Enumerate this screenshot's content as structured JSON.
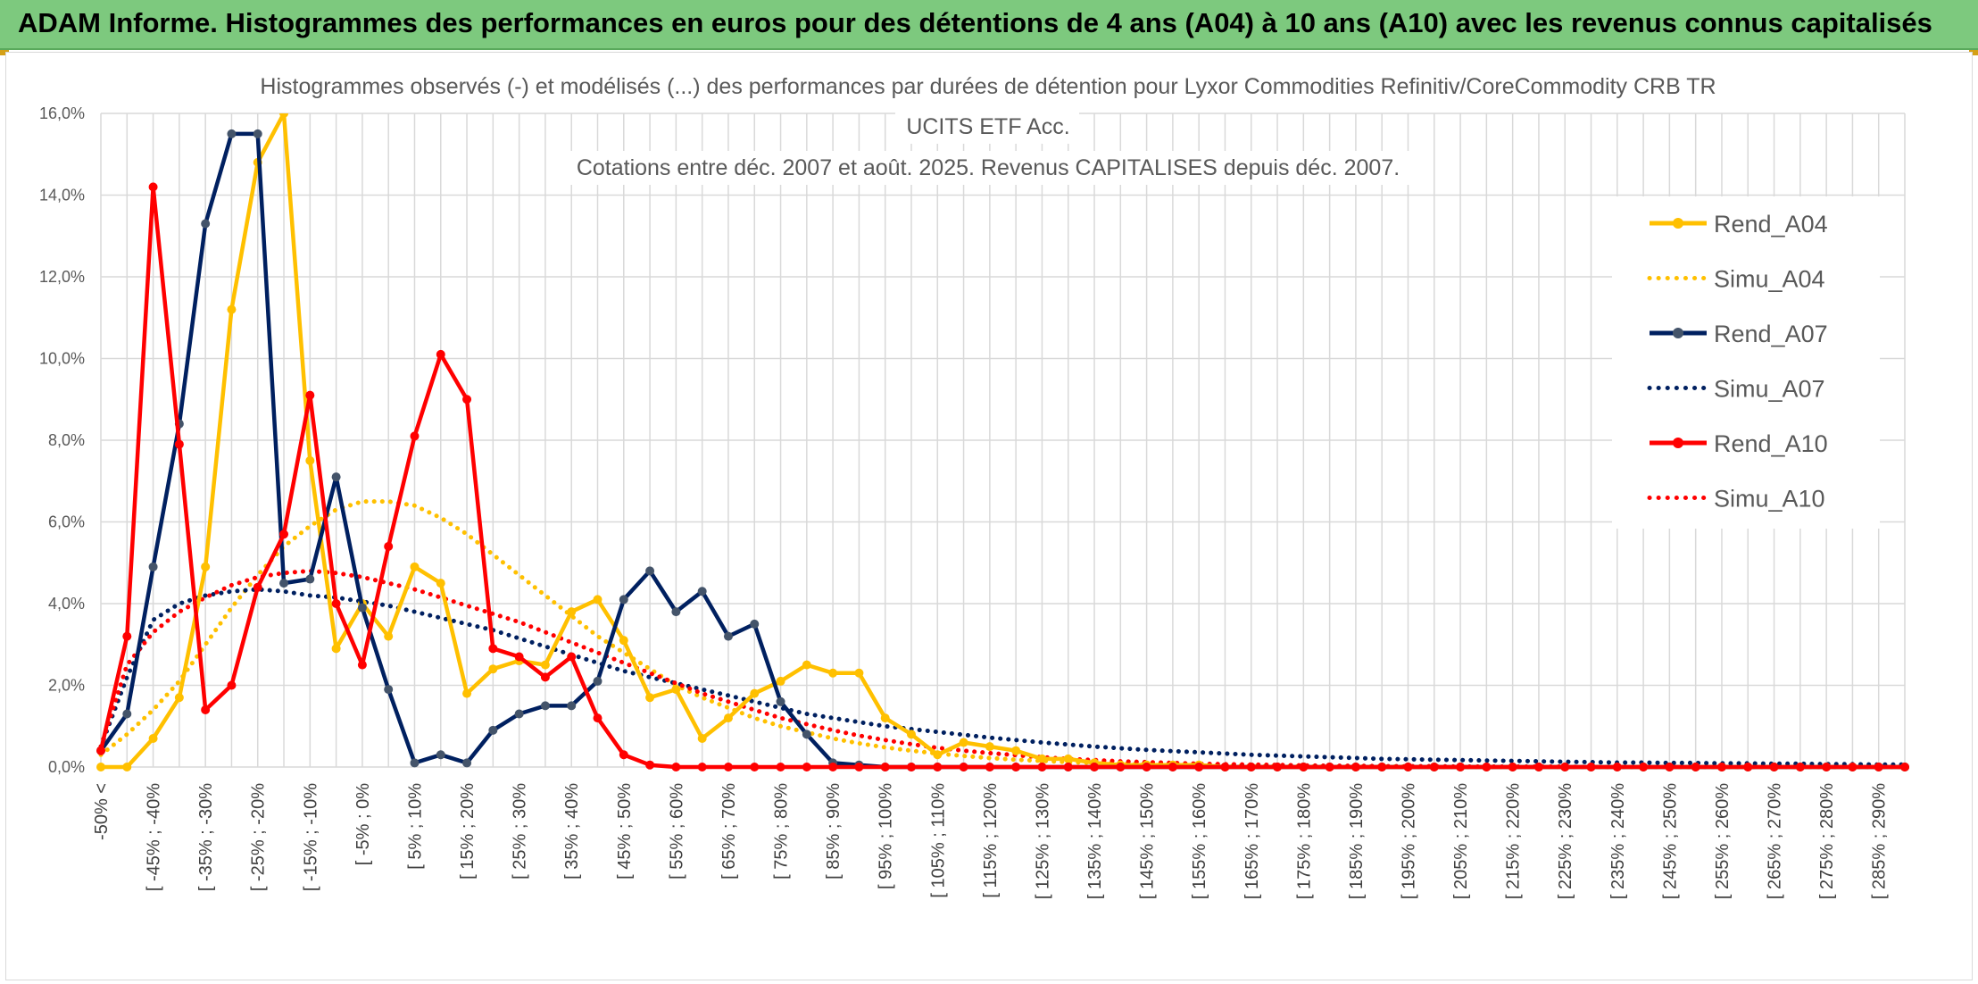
{
  "banner": {
    "title": "ADAM Informe. Histogrammes des performances en euros pour des détentions de 4 ans (A04) à 10 ans (A10) avec les revenus connus capitalisés"
  },
  "colors": {
    "banner_bg": "#7dc97e",
    "A04": "#ffc000",
    "A07": "#002060",
    "A07_marker": "#44546a",
    "A10": "#ff0000",
    "grid": "#d9d9d9"
  },
  "chart_data": {
    "type": "line",
    "title_lines": [
      "Histogrammes observés (-) et modélisés (...) des performances par durées de détention pour Lyxor Commodities Refinitiv/CoreCommodity CRB TR",
      "UCITS ETF Acc.",
      "Cotations entre déc. 2007 et août. 2025. Revenus CAPITALISES depuis déc. 2007."
    ],
    "ylim": [
      0,
      16
    ],
    "yticks": [
      "0,0%",
      "2,0%",
      "4,0%",
      "6,0%",
      "8,0%",
      "10,0%",
      "12,0%",
      "14,0%",
      "16,0%"
    ],
    "grid": true,
    "legend_position": "right",
    "x_tick_labels": [
      "-50% <",
      "[ -45% ; -40%",
      "[ -35% ; -30%",
      "[ -25% ; -20%",
      "[ -15% ; -10%",
      "[ -5% ; 0%",
      "[ 5% ; 10%",
      "[ 15% ; 20%",
      "[ 25% ; 30%",
      "[ 35% ; 40%",
      "[ 45% ; 50%",
      "[ 55% ; 60%",
      "[ 65% ; 70%",
      "[ 75% ; 80%",
      "[ 85% ; 90%",
      "[ 95% ; 100%",
      "[ 105% ; 110%",
      "[ 115% ; 120%",
      "[ 125% ; 130%",
      "[ 135% ; 140%",
      "[ 145% ; 150%",
      "[ 155% ; 160%",
      "[ 165% ; 170%",
      "[ 175% ; 180%",
      "[ 185% ; 190%",
      "[ 195% ; 200%",
      "[ 205% ; 210%",
      "[ 215% ; 220%",
      "[ 225% ; 230%",
      "[ 235% ; 240%",
      "[ 245% ; 250%",
      "[ 255% ; 260%",
      "[ 265% ; 270%",
      "[ 275% ; 280%",
      "[ 285% ; 290%"
    ],
    "n_points": 70,
    "series": [
      {
        "name": "Rend_A04",
        "style": "solid",
        "color": "#ffc000",
        "marker": "#ffc000",
        "values": [
          0.0,
          0.0,
          0.7,
          1.7,
          4.9,
          11.2,
          14.8,
          16.5,
          7.5,
          2.9,
          4.0,
          3.2,
          4.9,
          4.5,
          1.8,
          2.4,
          2.6,
          2.5,
          3.8,
          4.1,
          3.1,
          1.7,
          1.9,
          0.7,
          1.2,
          1.8,
          2.1,
          2.5,
          2.3,
          2.3,
          1.2,
          0.8,
          0.3,
          0.6,
          0.5,
          0.4,
          0.2,
          0.2,
          0.1,
          0.05,
          0.05,
          0.05,
          0.05,
          0.0,
          0.0,
          0.0,
          0.0,
          0.0,
          0.0,
          0.0,
          0.0,
          0.0,
          0.0,
          0.0,
          0.0,
          0.0,
          0.0,
          0.0,
          0.0,
          0.0,
          0.0,
          0.0,
          0.0,
          0.0,
          0.0,
          0.0,
          0.0,
          0.0,
          0.0,
          0.0
        ]
      },
      {
        "name": "Simu_A04",
        "style": "dotted",
        "color": "#ffc000",
        "values": [
          0.3,
          0.8,
          1.4,
          2.1,
          3.0,
          3.9,
          4.7,
          5.4,
          5.9,
          6.3,
          6.5,
          6.5,
          6.4,
          6.1,
          5.7,
          5.2,
          4.7,
          4.2,
          3.7,
          3.2,
          2.8,
          2.4,
          2.0,
          1.7,
          1.45,
          1.2,
          1.0,
          0.85,
          0.7,
          0.58,
          0.48,
          0.4,
          0.33,
          0.27,
          0.22,
          0.18,
          0.15,
          0.12,
          0.1,
          0.08,
          0.07,
          0.05,
          0.04,
          0.03,
          0.03,
          0.02,
          0.02,
          0.01,
          0.01,
          0.01,
          0.01,
          0.0,
          0.0,
          0.0,
          0.0,
          0.0,
          0.0,
          0.0,
          0.0,
          0.0,
          0.0,
          0.0,
          0.0,
          0.0,
          0.0,
          0.0,
          0.0,
          0.0,
          0.0,
          0.0
        ]
      },
      {
        "name": "Rend_A07",
        "style": "solid",
        "color": "#002060",
        "marker": "#44546a",
        "values": [
          0.4,
          1.3,
          4.9,
          8.4,
          13.3,
          15.5,
          15.5,
          4.5,
          4.6,
          7.1,
          3.9,
          1.9,
          0.1,
          0.3,
          0.1,
          0.9,
          1.3,
          1.5,
          1.5,
          2.1,
          4.1,
          4.8,
          3.8,
          4.3,
          3.2,
          3.5,
          1.6,
          0.8,
          0.1,
          0.05,
          0.0,
          0.0,
          0.0,
          0.0,
          0.0,
          0.0,
          0.0,
          0.0,
          0.0,
          0.0,
          0.0,
          0.0,
          0.0,
          0.0,
          0.0,
          0.0,
          0.0,
          0.0,
          0.0,
          0.0,
          0.0,
          0.0,
          0.0,
          0.0,
          0.0,
          0.0,
          0.0,
          0.0,
          0.0,
          0.0,
          0.0,
          0.0,
          0.0,
          0.0,
          0.0,
          0.0,
          0.0,
          0.0,
          0.0,
          0.0
        ]
      },
      {
        "name": "Simu_A07",
        "style": "dotted",
        "color": "#002060",
        "values": [
          0.5,
          2.2,
          3.6,
          4.0,
          4.2,
          4.3,
          4.35,
          4.3,
          4.2,
          4.15,
          4.05,
          3.95,
          3.8,
          3.65,
          3.5,
          3.35,
          3.15,
          2.95,
          2.75,
          2.55,
          2.35,
          2.2,
          2.05,
          1.9,
          1.75,
          1.6,
          1.45,
          1.3,
          1.2,
          1.1,
          1.0,
          0.93,
          0.86,
          0.79,
          0.72,
          0.66,
          0.6,
          0.55,
          0.5,
          0.46,
          0.42,
          0.39,
          0.36,
          0.33,
          0.3,
          0.28,
          0.26,
          0.24,
          0.22,
          0.2,
          0.19,
          0.18,
          0.17,
          0.16,
          0.15,
          0.14,
          0.13,
          0.12,
          0.11,
          0.11,
          0.1,
          0.1,
          0.09,
          0.09,
          0.08,
          0.08,
          0.07,
          0.07,
          0.06,
          0.06
        ]
      },
      {
        "name": "Rend_A10",
        "style": "solid",
        "color": "#ff0000",
        "marker": "#ff0000",
        "values": [
          0.4,
          3.2,
          14.2,
          7.9,
          1.4,
          2.0,
          4.4,
          5.7,
          9.1,
          4.0,
          2.5,
          5.4,
          8.1,
          10.1,
          9.0,
          2.9,
          2.7,
          2.2,
          2.7,
          1.2,
          0.3,
          0.05,
          0.0,
          0.0,
          0.0,
          0.0,
          0.0,
          0.0,
          0.0,
          0.0,
          0.0,
          0.0,
          0.0,
          0.0,
          0.0,
          0.0,
          0.0,
          0.0,
          0.0,
          0.0,
          0.0,
          0.0,
          0.0,
          0.0,
          0.0,
          0.0,
          0.0,
          0.0,
          0.0,
          0.0,
          0.0,
          0.0,
          0.0,
          0.0,
          0.0,
          0.0,
          0.0,
          0.0,
          0.0,
          0.0,
          0.0,
          0.0,
          0.0,
          0.0,
          0.0,
          0.0,
          0.0,
          0.0,
          0.0,
          0.0
        ]
      },
      {
        "name": "Simu_A10",
        "style": "dotted",
        "color": "#ff0000",
        "values": [
          0.5,
          2.5,
          3.3,
          3.8,
          4.15,
          4.45,
          4.65,
          4.75,
          4.8,
          4.75,
          4.65,
          4.5,
          4.35,
          4.15,
          3.95,
          3.75,
          3.55,
          3.3,
          3.05,
          2.8,
          2.55,
          2.3,
          2.05,
          1.8,
          1.6,
          1.4,
          1.2,
          1.05,
          0.9,
          0.77,
          0.66,
          0.56,
          0.47,
          0.4,
          0.34,
          0.29,
          0.24,
          0.2,
          0.17,
          0.14,
          0.12,
          0.1,
          0.08,
          0.07,
          0.06,
          0.05,
          0.04,
          0.03,
          0.03,
          0.02,
          0.02,
          0.02,
          0.01,
          0.01,
          0.01,
          0.01,
          0.01,
          0.0,
          0.0,
          0.0,
          0.0,
          0.0,
          0.0,
          0.0,
          0.0,
          0.0,
          0.0,
          0.0,
          0.0,
          0.0
        ]
      }
    ]
  }
}
